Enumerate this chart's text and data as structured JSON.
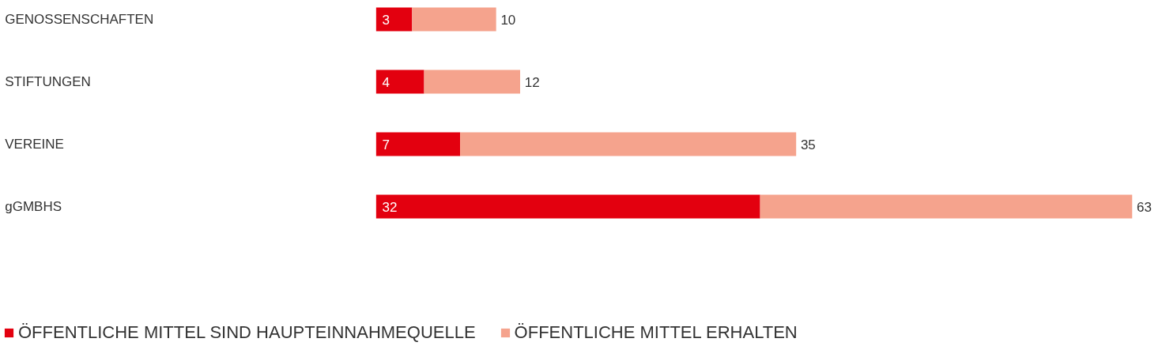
{
  "chart_data": {
    "type": "bar",
    "orientation": "horizontal",
    "stacked": true,
    "categories": [
      "GENOSSENSCHAFTEN",
      "STIFTUNGEN",
      "VEREINE",
      "gGMBHS"
    ],
    "series": [
      {
        "name": "ÖFFENTLICHE MITTEL SIND HAUPTEINNAHMEQUELLE",
        "color": "#e3000f",
        "values": [
          3,
          4,
          7,
          32
        ],
        "value_labels": [
          "3",
          "4",
          "7",
          "32"
        ]
      },
      {
        "name": "ÖFFENTLICHE MITTEL ERHALTEN",
        "color": "#f5a38d",
        "values": [
          7,
          8,
          28,
          31
        ]
      }
    ],
    "totals": [
      "10",
      "12",
      "35",
      "63"
    ],
    "legend": "bottom left",
    "grid": false
  }
}
